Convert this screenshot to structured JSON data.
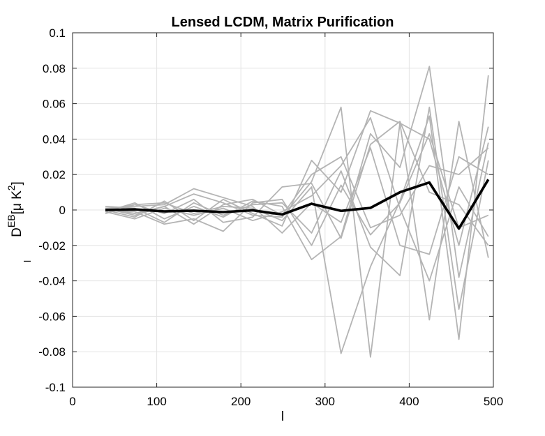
{
  "chart_data": {
    "type": "line",
    "title": "Lensed LCDM, Matrix Purification",
    "xlabel": "l",
    "ylabel": {
      "main": "D",
      "superscript": "EB",
      "subscript": "l",
      "unit_open": "[",
      "unit_mu": "μ",
      "unit_K": "K",
      "unit_power": "2",
      "unit_close": "]"
    },
    "xlim": [
      0,
      500
    ],
    "ylim": [
      -0.1,
      0.1
    ],
    "grid": true,
    "x_ticks": [
      0,
      100,
      200,
      300,
      400,
      500
    ],
    "y_ticks": [
      -0.1,
      -0.08,
      -0.06,
      -0.04,
      -0.02,
      0,
      0.02,
      0.04,
      0.06,
      0.08,
      0.1
    ],
    "x_tick_labels": [
      "0",
      "100",
      "200",
      "300",
      "400",
      "500"
    ],
    "y_tick_labels": [
      "-0.1",
      "-0.08",
      "-0.06",
      "-0.04",
      "-0.02",
      "0",
      "0.02",
      "0.04",
      "0.06",
      "0.08",
      "0.1"
    ],
    "x": [
      39,
      74,
      109,
      144,
      179,
      214,
      249,
      284,
      319,
      354,
      389,
      424,
      459,
      494
    ],
    "realization_color": "#b4b4b4",
    "mean_color": "#000000",
    "realizations": [
      {
        "values": [
          0.0,
          0.003,
          0.004,
          -0.002,
          0.002,
          0.001,
          -0.006,
          0.013,
          -0.081,
          -0.032,
          0.005,
          0.053,
          -0.073,
          0.076
        ]
      },
      {
        "values": [
          0.001,
          -0.002,
          0.002,
          0.009,
          0.004,
          -0.003,
          -0.004,
          0.016,
          0.058,
          -0.083,
          0.049,
          0.04,
          -0.02,
          0.047
        ]
      },
      {
        "values": [
          -0.001,
          0.004,
          -0.005,
          0.002,
          -0.004,
          0.005,
          0.002,
          -0.028,
          -0.015,
          0.043,
          0.024,
          0.081,
          -0.038,
          0.038
        ]
      },
      {
        "values": [
          0.0,
          -0.004,
          0.005,
          -0.006,
          0.006,
          -0.002,
          -0.009,
          0.028,
          0.01,
          0.056,
          0.049,
          -0.062,
          0.05,
          -0.027
        ]
      },
      {
        "values": [
          0.002,
          0.001,
          -0.007,
          0.004,
          -0.003,
          0.003,
          0.004,
          -0.013,
          0.022,
          -0.021,
          -0.037,
          0.058,
          -0.056,
          0.028
        ]
      },
      {
        "values": [
          -0.001,
          -0.005,
          0.001,
          -0.003,
          0.001,
          -0.006,
          -0.001,
          0.008,
          0.025,
          0.052,
          0.001,
          -0.04,
          0.013,
          -0.015
        ]
      },
      {
        "values": [
          0.001,
          0.002,
          0.003,
          0.012,
          0.007,
          0.002,
          -0.013,
          0.004,
          -0.007,
          0.035,
          -0.02,
          -0.025,
          0.03,
          0.02
        ]
      },
      {
        "values": [
          0.0,
          -0.001,
          -0.008,
          -0.005,
          -0.012,
          0.004,
          0.006,
          -0.02,
          0.014,
          -0.014,
          0.004,
          0.043,
          -0.01,
          -0.003
        ]
      },
      {
        "values": [
          -0.002,
          0.003,
          -0.002,
          0.006,
          -0.007,
          -0.004,
          0.013,
          0.015,
          -0.016,
          0.037,
          0.05,
          0.01,
          0.003,
          -0.02
        ]
      },
      {
        "values": [
          0.001,
          -0.003,
          0.002,
          -0.008,
          0.003,
          0.006,
          -0.003,
          0.02,
          0.03,
          -0.01,
          -0.003,
          0.025,
          0.02,
          0.035
        ]
      }
    ],
    "mean": {
      "values": [
        0.0,
        0.0003,
        -0.0008,
        -0.0004,
        -0.0012,
        -0.0002,
        -0.0025,
        0.0035,
        -0.0005,
        0.0012,
        0.01,
        0.0155,
        -0.0105,
        0.0172
      ]
    }
  }
}
